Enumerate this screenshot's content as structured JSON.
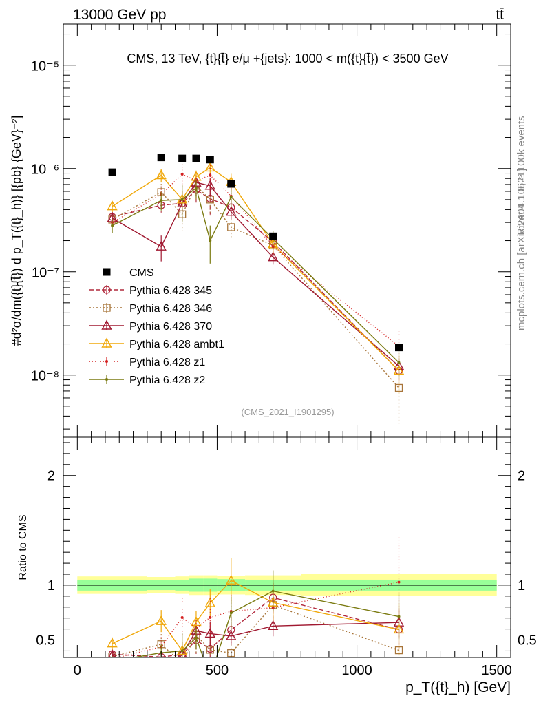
{
  "header": {
    "left": "13000 GeV pp",
    "right": "tt̄",
    "right_side_top": "Rivet 4.1.0, ≥ 100k events",
    "right_side_bottom": "mcplots.cern.ch [arXiv:2401.10621]"
  },
  "chart_data": {
    "type": "line",
    "title": "CMS, 13 TeV, {t}{t̄} e/μ +{jets}: 1000 < m({t}{t̄}) < 3500 GeV",
    "watermark": "(CMS_2021_I1901295)",
    "xlabel": "p_T({t}_h) [GeV]",
    "ylabel": "#d²σ/dm({t}{t̄}) d p_T({t}_h)} [{pb} {GeV}⁻²]",
    "ratio_ylabel": "Ratio to CMS",
    "xlim": [
      -50,
      1550
    ],
    "ylim": [
      2.5e-09,
      2.5e-05
    ],
    "ratio_ylim": [
      0.34,
      2.35
    ],
    "x_ticks": [
      "0",
      "500",
      "1000",
      "1500"
    ],
    "y_ticks": [
      "10⁻⁸",
      "10⁻⁷",
      "10⁻⁶",
      "10⁻⁵"
    ],
    "ratio_ticks": [
      "0.5",
      "1",
      "2"
    ],
    "data_series": {
      "name": "CMS",
      "x": [
        125,
        300,
        375,
        425,
        475,
        550,
        700,
        1150
      ],
      "y": [
        9.2e-07,
        1.28e-06,
        1.25e-06,
        1.25e-06,
        1.22e-06,
        7.1e-07,
        2.2e-07,
        1.85e-08
      ]
    },
    "band_bins": [
      {
        "x0": 0,
        "x1": 250,
        "inner": 0.05,
        "outer": 0.08
      },
      {
        "x0": 250,
        "x1": 350,
        "inner": 0.045,
        "outer": 0.075
      },
      {
        "x0": 350,
        "x1": 400,
        "inner": 0.05,
        "outer": 0.08
      },
      {
        "x0": 400,
        "x1": 450,
        "inner": 0.06,
        "outer": 0.09
      },
      {
        "x0": 450,
        "x1": 500,
        "inner": 0.06,
        "outer": 0.09
      },
      {
        "x0": 500,
        "x1": 600,
        "inner": 0.055,
        "outer": 0.085
      },
      {
        "x0": 600,
        "x1": 800,
        "inner": 0.05,
        "outer": 0.09
      },
      {
        "x0": 800,
        "x1": 1500,
        "inner": 0.05,
        "outer": 0.1
      }
    ],
    "series": [
      {
        "name": "Pythia 6.428 345",
        "color": "#b1283c",
        "dash": "6,3",
        "marker": "circle",
        "values": [
          3.4e-07,
          4.4e-07,
          4.6e-07,
          6.2e-07,
          5.1e-07,
          4.2e-07,
          1.95e-07,
          1.1e-08
        ],
        "rel_err": [
          0.12,
          0.15,
          0.3,
          0.25,
          0.3,
          0.2,
          0.15,
          0.3
        ]
      },
      {
        "name": "Pythia 6.428 346",
        "color": "#a8753a",
        "dash": "2,3",
        "marker": "square",
        "values": [
          3.2e-07,
          5.9e-07,
          3.6e-07,
          6.8e-07,
          5e-07,
          2.7e-07,
          1.8e-07,
          7.5e-09
        ],
        "rel_err": [
          0.12,
          0.2,
          0.3,
          0.3,
          0.3,
          0.2,
          0.18,
          0.55
        ]
      },
      {
        "name": "Pythia 6.428 370",
        "color": "#a01830",
        "dash": "",
        "marker": "triangle",
        "values": [
          3.3e-07,
          1.75e-07,
          4.6e-07,
          7.3e-07,
          6.8e-07,
          3.8e-07,
          1.38e-07,
          1.22e-08
        ],
        "rel_err": [
          0.15,
          0.28,
          0.15,
          0.15,
          0.2,
          0.15,
          0.15,
          0.2
        ]
      },
      {
        "name": "Pythia 6.428 ambt1",
        "color": "#f0a80a",
        "dash": "",
        "marker": "triangle",
        "values": [
          4.3e-07,
          8.6e-07,
          5e-07,
          8.3e-07,
          1.02e-06,
          7.4e-07,
          1.85e-07,
          1.1e-08
        ],
        "rel_err": [
          0.12,
          0.15,
          0.2,
          0.15,
          0.15,
          0.2,
          0.2,
          0.4
        ]
      },
      {
        "name": "Pythia 6.428 z1",
        "color": "#d42020",
        "dash": "1,3",
        "marker": "dot",
        "values": [
          3e-07,
          5.6e-07,
          8.8e-07,
          7.6e-07,
          8.6e-07,
          5.4e-07,
          1.75e-07,
          1.9e-08
        ],
        "rel_err": [
          0.12,
          0.2,
          0.25,
          0.2,
          0.25,
          0.2,
          0.2,
          0.4
        ]
      },
      {
        "name": "Pythia 6.428 z2",
        "color": "#7a7a10",
        "dash": "",
        "marker": "dot",
        "values": [
          2.8e-07,
          4.9e-07,
          5e-07,
          6.5e-07,
          2e-07,
          5.3e-07,
          2.08e-07,
          1.32e-08
        ],
        "rel_err": [
          0.15,
          0.2,
          0.4,
          0.2,
          0.4,
          0.2,
          0.2,
          0.3
        ]
      }
    ]
  }
}
